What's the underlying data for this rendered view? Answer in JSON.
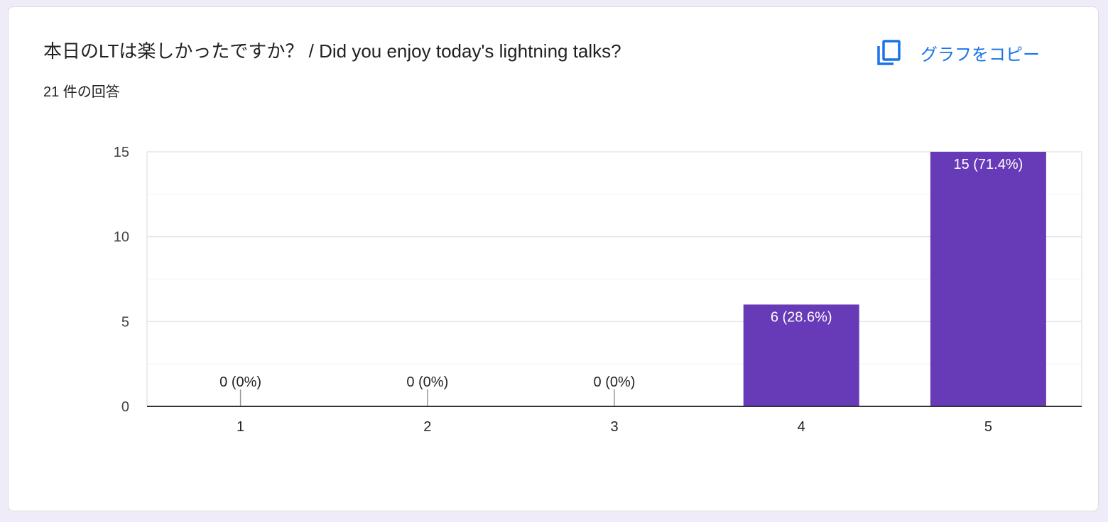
{
  "card": {
    "title": "本日のLTは楽しかったですか？ / Did you enjoy today's lightning talks?",
    "response_count": "21 件の回答",
    "copy_button_label": "グラフをコピー",
    "copy_icon": "copy-icon"
  },
  "colors": {
    "bar": "#673ab7",
    "accent": "#1a73e8",
    "background": "#f0ebf8"
  },
  "chart_data": {
    "type": "bar",
    "categories": [
      "1",
      "2",
      "3",
      "4",
      "5"
    ],
    "values": [
      0,
      0,
      0,
      6,
      15
    ],
    "data_labels": [
      "0 (0%)",
      "0 (0%)",
      "0 (0%)",
      "6 (28.6%)",
      "15 (71.4%)"
    ],
    "yticks": [
      0,
      5,
      10,
      15
    ],
    "ylim": [
      0,
      15
    ],
    "minor_gridlines": [
      2.5,
      7.5,
      12.5
    ],
    "grid": true,
    "legend": "none",
    "title": "本日のLTは楽しかったですか？ / Did you enjoy today's lightning talks?",
    "xlabel": "",
    "ylabel": ""
  }
}
